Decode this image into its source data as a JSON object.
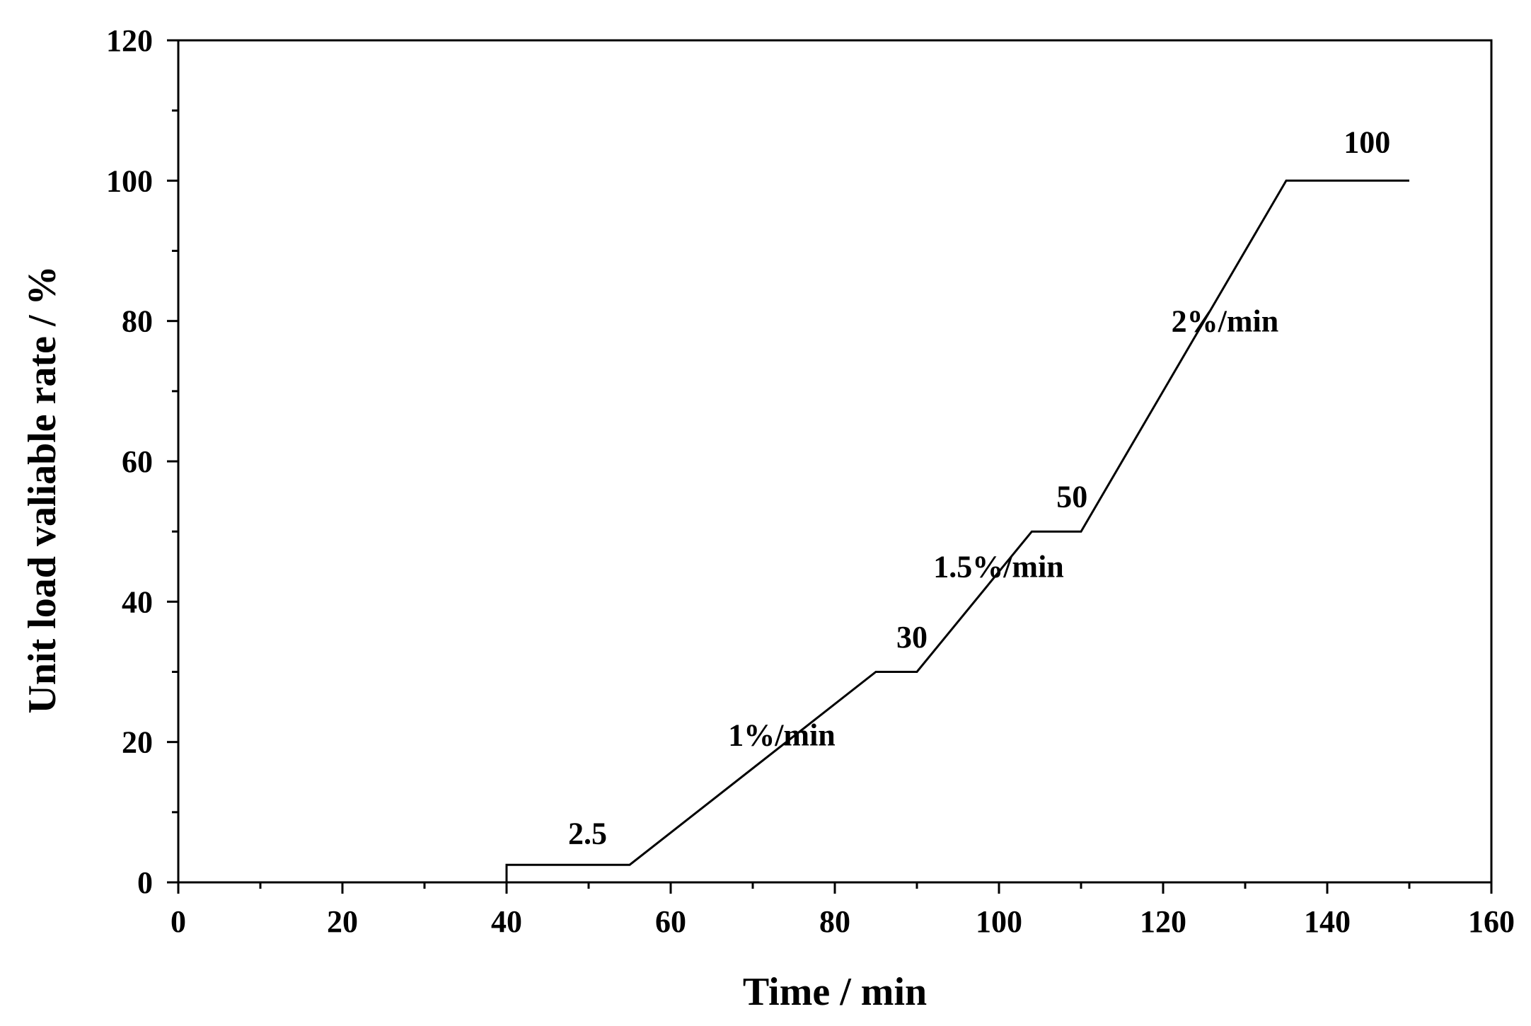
{
  "chart_data": {
    "type": "line",
    "title": "",
    "xlabel": "Time / min",
    "ylabel": "Unit load valiable rate / %",
    "xlim": [
      0,
      160
    ],
    "ylim": [
      0,
      120
    ],
    "x_ticks": [
      0,
      20,
      40,
      60,
      80,
      100,
      120,
      140,
      160
    ],
    "y_ticks": [
      0,
      20,
      40,
      60,
      80,
      100,
      120
    ],
    "x_tick_labels": [
      "0",
      "20",
      "40",
      "60",
      "80",
      "100",
      "120",
      "140",
      "160"
    ],
    "y_tick_labels": [
      "0",
      "20",
      "40",
      "60",
      "80",
      "100",
      "120"
    ],
    "x_minor_step": 10,
    "y_minor_step": 10,
    "grid": false,
    "legend": "none",
    "series": [
      {
        "name": "Unit load",
        "x": [
          40,
          40,
          55,
          85,
          90,
          104,
          110,
          135,
          150
        ],
        "y": [
          0,
          2.5,
          2.5,
          30,
          30,
          50,
          50,
          100,
          100
        ]
      }
    ],
    "annotations": [
      {
        "text": "2.5",
        "x": 47.5,
        "y": 5.5
      },
      {
        "text": "1%/min",
        "x": 67,
        "y": 19.5
      },
      {
        "text": "30",
        "x": 87.5,
        "y": 33.5
      },
      {
        "text": "1.5%/min",
        "x": 92,
        "y": 43.5
      },
      {
        "text": "50",
        "x": 107,
        "y": 53.5
      },
      {
        "text": "2%/min",
        "x": 121,
        "y": 78.5
      },
      {
        "text": "100",
        "x": 142,
        "y": 104
      }
    ],
    "colors": {
      "line": "#000000",
      "axis": "#000000",
      "background": "#ffffff"
    }
  }
}
